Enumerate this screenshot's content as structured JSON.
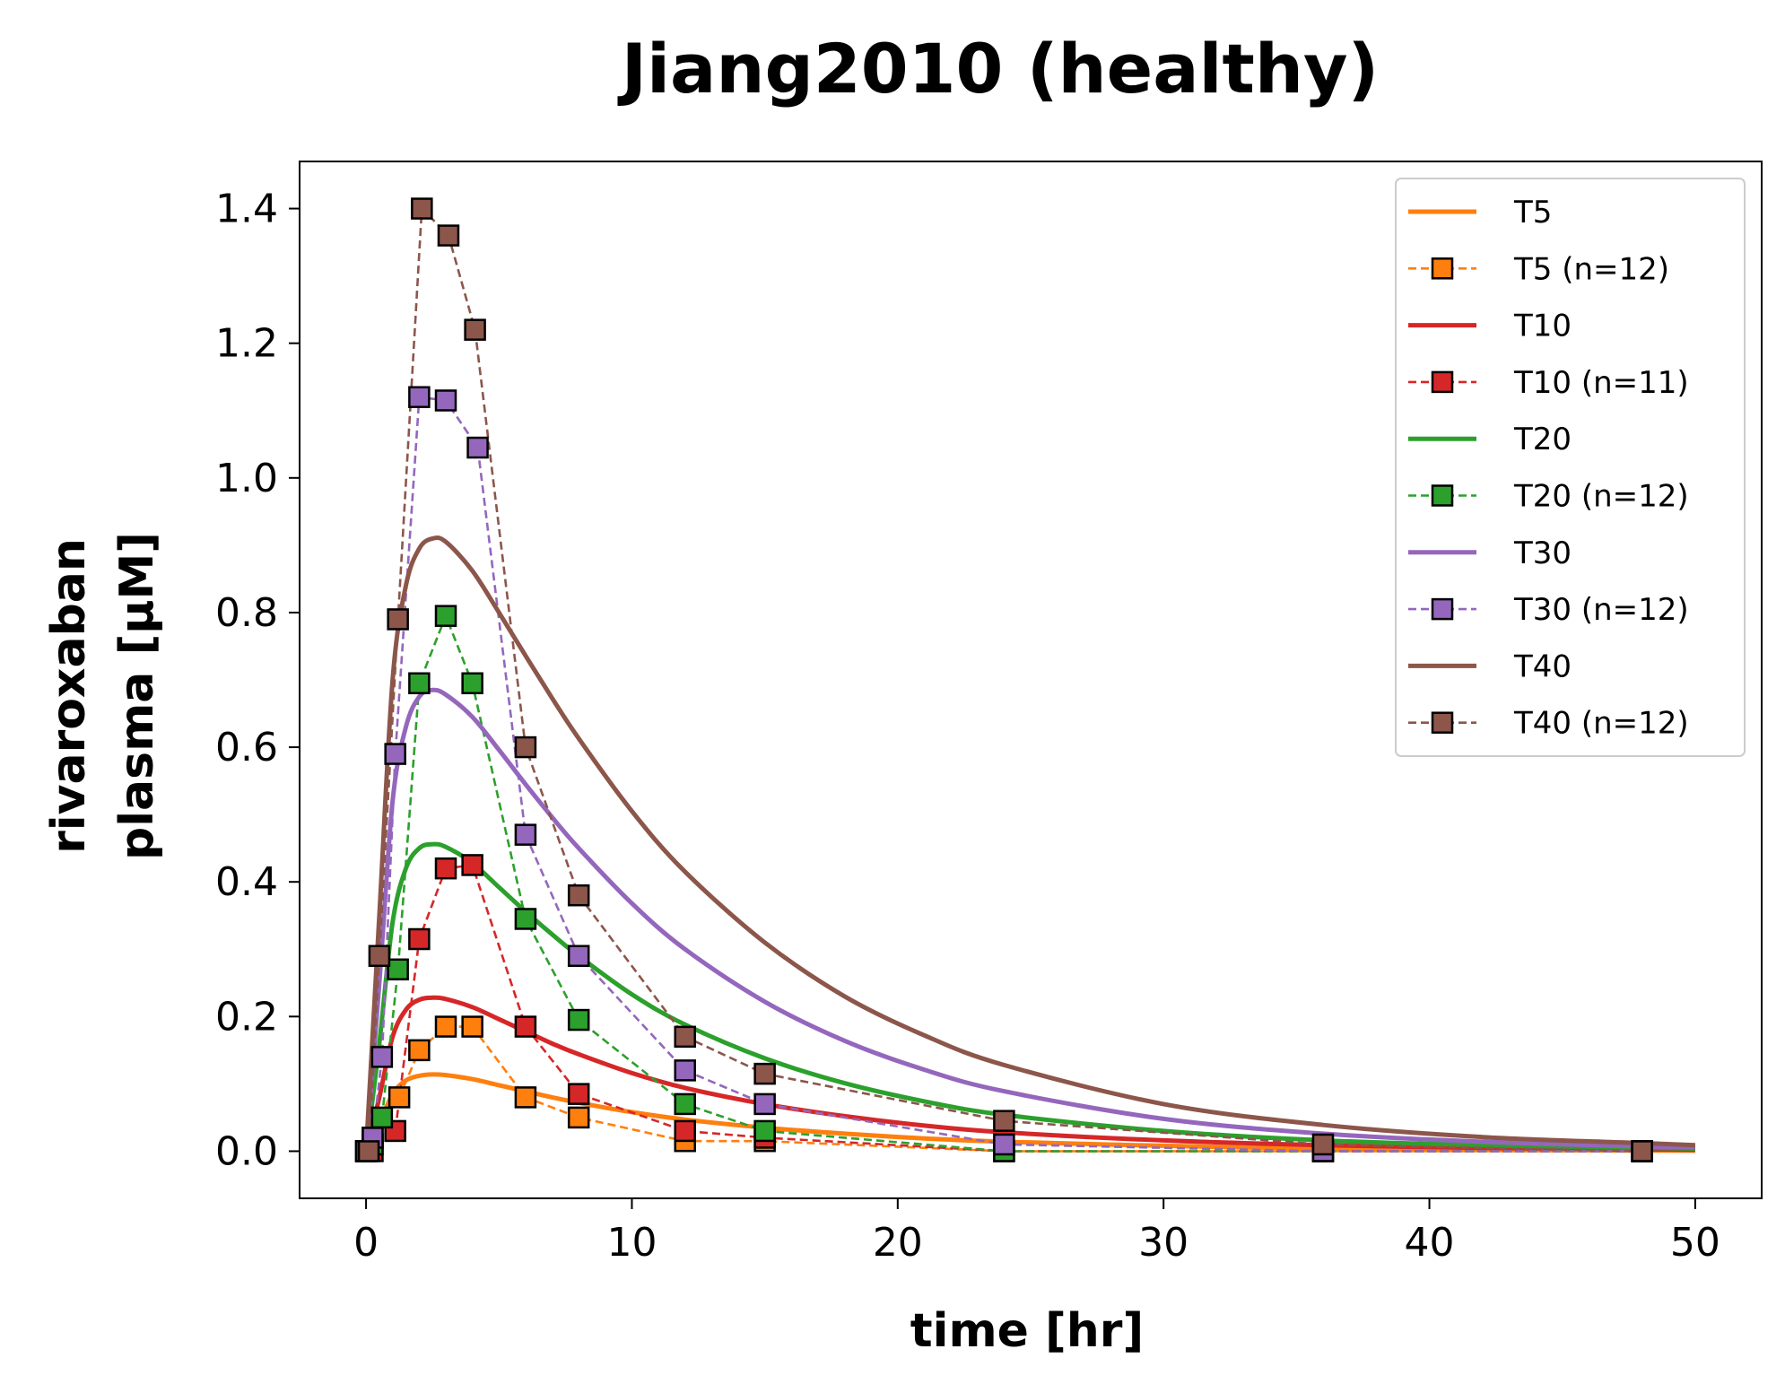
{
  "chart_data": {
    "type": "line",
    "title": "Jiang2010 (healthy)",
    "xlabel": "time [hr]",
    "ylabel_line1": "rivaroxaban",
    "ylabel_line2": "plasma [µM]",
    "xlim": [
      -2.5,
      52.5
    ],
    "ylim": [
      -0.07,
      1.47
    ],
    "xticks": [
      0,
      10,
      20,
      30,
      40,
      50
    ],
    "yticks": [
      0.0,
      0.2,
      0.4,
      0.6,
      0.8,
      1.0,
      1.2,
      1.4
    ],
    "xtick_labels": [
      "0",
      "10",
      "20",
      "30",
      "40",
      "50"
    ],
    "ytick_labels": [
      "0.0",
      "0.2",
      "0.4",
      "0.6",
      "0.8",
      "1.0",
      "1.2",
      "1.4"
    ],
    "grid": false,
    "legend_position": "top-right",
    "series": [
      {
        "name": "T5",
        "kind": "simulation",
        "color": "#ff7f0e",
        "x": [
          0,
          0.5,
          1,
          1.5,
          2,
          2.5,
          3,
          4,
          5,
          6,
          7,
          8,
          10,
          12,
          15,
          18,
          21,
          24,
          30,
          36,
          42,
          48,
          50
        ],
        "values": [
          0,
          0.04,
          0.085,
          0.105,
          0.112,
          0.114,
          0.113,
          0.107,
          0.098,
          0.089,
          0.08,
          0.072,
          0.058,
          0.047,
          0.035,
          0.026,
          0.019,
          0.014,
          0.008,
          0.004,
          0.002,
          0.001,
          0.001
        ]
      },
      {
        "name": "T5 (n=12)",
        "kind": "data",
        "color": "#ff7f0e",
        "x": [
          0,
          0.25,
          1.25,
          2,
          3,
          4,
          6,
          8,
          12,
          15,
          24,
          36,
          48
        ],
        "values": [
          0.0,
          0.02,
          0.08,
          0.15,
          0.185,
          0.185,
          0.08,
          0.05,
          0.015,
          0.015,
          0.0,
          0.0,
          0.0
        ]
      },
      {
        "name": "T10",
        "kind": "simulation",
        "color": "#d62728",
        "x": [
          0,
          0.5,
          1,
          1.5,
          2,
          2.5,
          3,
          4,
          5,
          6,
          7,
          8,
          10,
          12,
          15,
          18,
          21,
          24,
          30,
          36,
          42,
          48,
          50
        ],
        "values": [
          0,
          0.08,
          0.17,
          0.21,
          0.225,
          0.228,
          0.226,
          0.214,
          0.196,
          0.178,
          0.16,
          0.144,
          0.116,
          0.094,
          0.07,
          0.052,
          0.038,
          0.028,
          0.016,
          0.009,
          0.005,
          0.003,
          0.002
        ]
      },
      {
        "name": "T10 (n=11)",
        "kind": "data",
        "color": "#d62728",
        "x": [
          0,
          0.25,
          1.1,
          2,
          3,
          4,
          6,
          8,
          12,
          15,
          24,
          36,
          48
        ],
        "values": [
          0.0,
          0.0,
          0.03,
          0.315,
          0.42,
          0.425,
          0.185,
          0.085,
          0.03,
          0.02,
          0.0,
          0.0,
          0.0
        ]
      },
      {
        "name": "T20",
        "kind": "simulation",
        "color": "#2ca02c",
        "x": [
          0,
          0.5,
          1,
          1.5,
          2,
          2.5,
          3,
          4,
          5,
          6,
          7,
          8,
          10,
          12,
          15,
          18,
          21,
          24,
          30,
          36,
          42,
          48,
          50
        ],
        "values": [
          0,
          0.16,
          0.34,
          0.42,
          0.45,
          0.456,
          0.452,
          0.428,
          0.392,
          0.356,
          0.322,
          0.29,
          0.233,
          0.188,
          0.138,
          0.101,
          0.074,
          0.054,
          0.03,
          0.016,
          0.009,
          0.005,
          0.004
        ]
      },
      {
        "name": "T20 (n=12)",
        "kind": "data",
        "color": "#2ca02c",
        "x": [
          0,
          0.25,
          0.6,
          1.2,
          2,
          3,
          4,
          6,
          8,
          12,
          15,
          24,
          36,
          48
        ],
        "values": [
          0.0,
          0.01,
          0.05,
          0.27,
          0.695,
          0.795,
          0.695,
          0.345,
          0.195,
          0.07,
          0.03,
          0.0,
          0.0,
          0.0
        ]
      },
      {
        "name": "T30",
        "kind": "simulation",
        "color": "#9467bd",
        "x": [
          0,
          0.5,
          1,
          1.5,
          2,
          2.5,
          3,
          4,
          5,
          6,
          7,
          8,
          10,
          12,
          15,
          18,
          21,
          24,
          30,
          36,
          42,
          48,
          50
        ],
        "values": [
          0,
          0.25,
          0.52,
          0.63,
          0.675,
          0.685,
          0.678,
          0.645,
          0.596,
          0.545,
          0.496,
          0.45,
          0.368,
          0.3,
          0.222,
          0.164,
          0.121,
          0.089,
          0.048,
          0.026,
          0.014,
          0.007,
          0.006
        ]
      },
      {
        "name": "T30 (n=12)",
        "kind": "data",
        "color": "#9467bd",
        "x": [
          0,
          0.25,
          0.6,
          1.1,
          2,
          3,
          4.2,
          6,
          8,
          12,
          15,
          24,
          36,
          48
        ],
        "values": [
          0.0,
          0.02,
          0.14,
          0.59,
          1.12,
          1.115,
          1.045,
          0.47,
          0.29,
          0.12,
          0.07,
          0.01,
          0.0,
          0.0
        ]
      },
      {
        "name": "T40",
        "kind": "simulation",
        "color": "#8c564b",
        "x": [
          0,
          0.5,
          1,
          1.5,
          2,
          2.5,
          3,
          4,
          5,
          6,
          7,
          8,
          10,
          12,
          15,
          18,
          21,
          24,
          30,
          36,
          42,
          48,
          50
        ],
        "values": [
          0,
          0.35,
          0.7,
          0.84,
          0.895,
          0.91,
          0.905,
          0.862,
          0.8,
          0.736,
          0.673,
          0.613,
          0.505,
          0.415,
          0.31,
          0.23,
          0.172,
          0.128,
          0.07,
          0.039,
          0.021,
          0.012,
          0.009
        ]
      },
      {
        "name": "T40 (n=12)",
        "kind": "data",
        "color": "#8c564b",
        "x": [
          0.1,
          0.5,
          1.2,
          2.1,
          3.1,
          4.1,
          6,
          8,
          12,
          15,
          24,
          36,
          48
        ],
        "values": [
          0.0,
          0.29,
          0.79,
          1.4,
          1.36,
          1.22,
          0.6,
          0.38,
          0.17,
          0.115,
          0.045,
          0.01,
          0.0
        ]
      }
    ]
  }
}
